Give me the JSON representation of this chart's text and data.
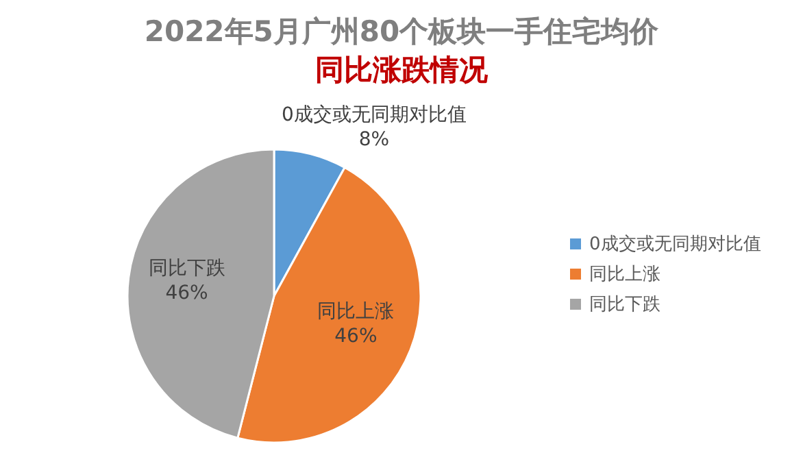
{
  "chart_data": {
    "type": "pie",
    "title": "2022年5月广州80个板块一手住宅均价",
    "subtitle": "同比涨跌情况",
    "categories": [
      "0成交或无同期对比值",
      "同比上涨",
      "同比下跌"
    ],
    "values": [
      8,
      46,
      46
    ],
    "colors": [
      "#5b9bd5",
      "#ed7d31",
      "#a5a5a5"
    ],
    "value_labels": [
      "8%",
      "46%",
      "46%"
    ],
    "legend": "right"
  }
}
